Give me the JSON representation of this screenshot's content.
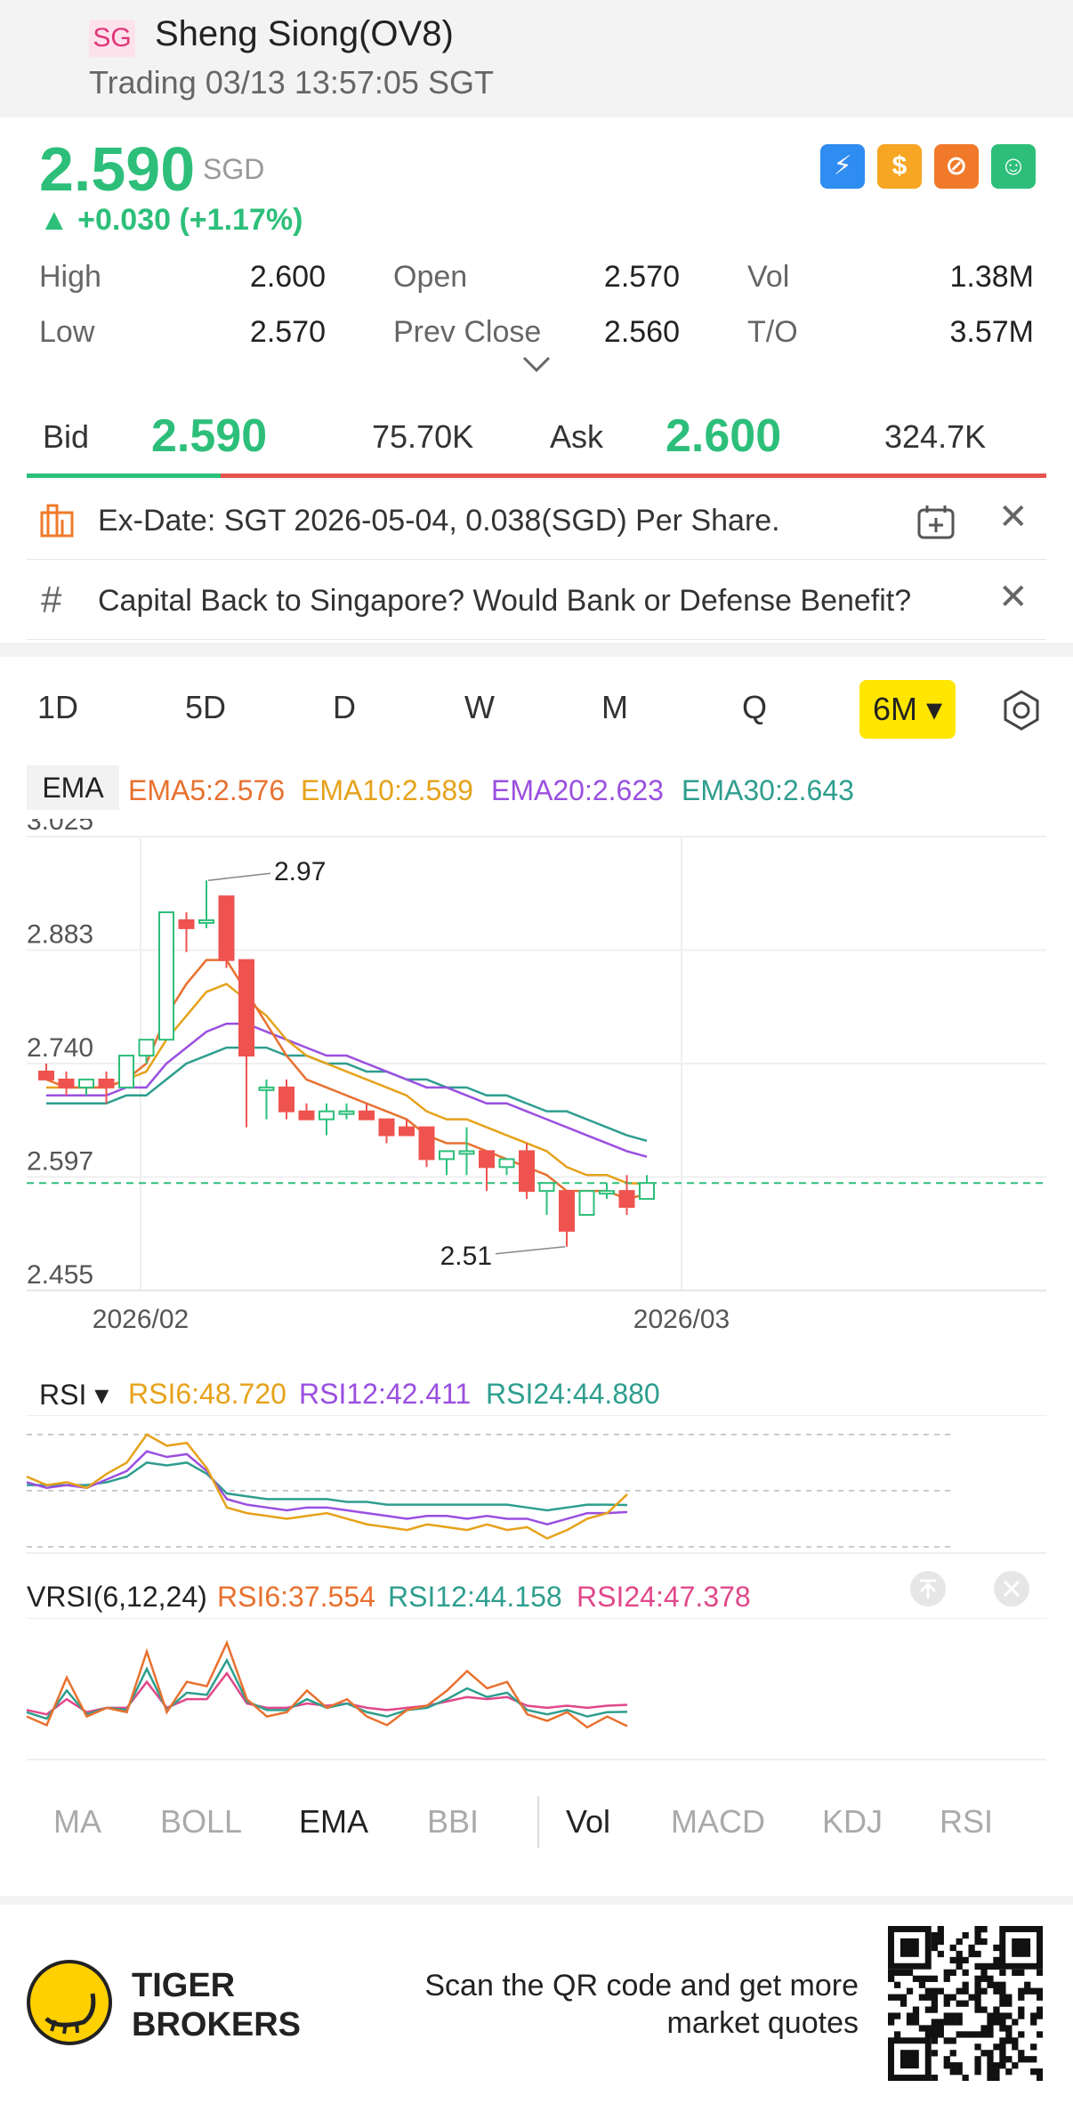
{
  "header": {
    "badge": "SG",
    "title": "Sheng Siong(OV8)",
    "status": "Trading 03/13 13:57:05 SGT"
  },
  "quote": {
    "price": "2.590",
    "currency": "SGD",
    "change": "▲ +0.030 (+1.17%)",
    "feature_icons": [
      "lightning-icon",
      "dollar-icon",
      "no-fee-icon",
      "news-icon"
    ],
    "stats": [
      {
        "label": "High",
        "value": "2.600"
      },
      {
        "label": "Open",
        "value": "2.570"
      },
      {
        "label": "Vol",
        "value": "1.38M"
      },
      {
        "label": "Low",
        "value": "2.570"
      },
      {
        "label": "Prev Close",
        "value": "2.560"
      },
      {
        "label": "T/O",
        "value": "3.57M"
      }
    ]
  },
  "bidask": {
    "bid_label": "Bid",
    "bid_price": "2.590",
    "bid_vol": "75.70K",
    "ask_label": "Ask",
    "ask_price": "2.600",
    "ask_vol": "324.7K",
    "bid_ratio": 0.19
  },
  "notices": [
    {
      "text": "Ex-Date: SGT 2026-05-04, 0.038(SGD) Per Share."
    },
    {
      "text": "Capital Back to Singapore? Would Bank or Defense Benefit?"
    }
  ],
  "periods": [
    "1D",
    "5D",
    "D",
    "W",
    "M",
    "Q"
  ],
  "active_period": "6M ▾",
  "ema_legend": {
    "chip": "EMA",
    "items": [
      {
        "text": "EMA5:2.576",
        "color": "#e8712f"
      },
      {
        "text": "EMA10:2.589",
        "color": "#e6a21a"
      },
      {
        "text": "EMA20:2.623",
        "color": "#9a4fe0"
      },
      {
        "text": "EMA30:2.643",
        "color": "#2e9e8e"
      }
    ]
  },
  "rsi_legend": {
    "label": "RSI ▾",
    "items": [
      {
        "text": "RSI6:48.720",
        "color": "#e6a21a"
      },
      {
        "text": "RSI12:42.411",
        "color": "#9a4fe0"
      },
      {
        "text": "RSI24:44.880",
        "color": "#2e9e8e"
      }
    ]
  },
  "vrsi_legend": {
    "label": "VRSI(6,12,24)",
    "items": [
      {
        "text": "RSI6:37.554",
        "color": "#e8712f"
      },
      {
        "text": "RSI12:44.158",
        "color": "#2e9e8e"
      },
      {
        "text": "RSI24:47.378",
        "color": "#e0488a"
      }
    ]
  },
  "indicator_tabs": [
    "MA",
    "BOLL",
    "EMA",
    "BBI",
    "Vol",
    "MACD",
    "KDJ",
    "RSI"
  ],
  "footer": {
    "brand_line1": "TIGER",
    "brand_line2": "BROKERS",
    "scan_line1": "Scan the QR code and get more",
    "scan_line2": "market quotes"
  },
  "chart_data": {
    "type": "candlestick",
    "y_ticks": [
      "3.025",
      "2.883",
      "2.740",
      "2.597",
      "2.455"
    ],
    "x_ticks": [
      "2026/02",
      "2026/03"
    ],
    "ylim": [
      2.455,
      3.025
    ],
    "ref_line": 2.59,
    "high_label": "2.97",
    "low_label": "2.51",
    "candles": [
      {
        "o": 2.73,
        "h": 2.74,
        "l": 2.72,
        "c": 2.72
      },
      {
        "o": 2.72,
        "h": 2.73,
        "l": 2.7,
        "c": 2.71
      },
      {
        "o": 2.71,
        "h": 2.72,
        "l": 2.7,
        "c": 2.72
      },
      {
        "o": 2.72,
        "h": 2.73,
        "l": 2.69,
        "c": 2.71
      },
      {
        "o": 2.71,
        "h": 2.75,
        "l": 2.71,
        "c": 2.75
      },
      {
        "o": 2.75,
        "h": 2.77,
        "l": 2.74,
        "c": 2.77
      },
      {
        "o": 2.77,
        "h": 2.93,
        "l": 2.77,
        "c": 2.93
      },
      {
        "o": 2.92,
        "h": 2.93,
        "l": 2.88,
        "c": 2.91
      },
      {
        "o": 2.92,
        "h": 2.97,
        "l": 2.91,
        "c": 2.92
      },
      {
        "o": 2.95,
        "h": 2.95,
        "l": 2.86,
        "c": 2.87
      },
      {
        "o": 2.87,
        "h": 2.87,
        "l": 2.66,
        "c": 2.75
      },
      {
        "o": 2.71,
        "h": 2.72,
        "l": 2.67,
        "c": 2.71
      },
      {
        "o": 2.71,
        "h": 2.72,
        "l": 2.67,
        "c": 2.68
      },
      {
        "o": 2.68,
        "h": 2.69,
        "l": 2.67,
        "c": 2.67
      },
      {
        "o": 2.67,
        "h": 2.69,
        "l": 2.65,
        "c": 2.68
      },
      {
        "o": 2.68,
        "h": 2.69,
        "l": 2.67,
        "c": 2.68
      },
      {
        "o": 2.68,
        "h": 2.69,
        "l": 2.67,
        "c": 2.67
      },
      {
        "o": 2.67,
        "h": 2.67,
        "l": 2.64,
        "c": 2.65
      },
      {
        "o": 2.66,
        "h": 2.67,
        "l": 2.65,
        "c": 2.65
      },
      {
        "o": 2.66,
        "h": 2.66,
        "l": 2.61,
        "c": 2.62
      },
      {
        "o": 2.62,
        "h": 2.63,
        "l": 2.6,
        "c": 2.63
      },
      {
        "o": 2.63,
        "h": 2.66,
        "l": 2.6,
        "c": 2.63
      },
      {
        "o": 2.63,
        "h": 2.63,
        "l": 2.58,
        "c": 2.61
      },
      {
        "o": 2.61,
        "h": 2.62,
        "l": 2.6,
        "c": 2.62
      },
      {
        "o": 2.63,
        "h": 2.64,
        "l": 2.57,
        "c": 2.58
      },
      {
        "o": 2.58,
        "h": 2.59,
        "l": 2.55,
        "c": 2.59
      },
      {
        "o": 2.58,
        "h": 2.58,
        "l": 2.51,
        "c": 2.53
      },
      {
        "o": 2.55,
        "h": 2.58,
        "l": 2.55,
        "c": 2.58
      },
      {
        "o": 2.58,
        "h": 2.59,
        "l": 2.57,
        "c": 2.58
      },
      {
        "o": 2.58,
        "h": 2.6,
        "l": 2.55,
        "c": 2.56
      },
      {
        "o": 2.57,
        "h": 2.6,
        "l": 2.57,
        "c": 2.59
      }
    ],
    "ema5": [
      2.72,
      2.71,
      2.71,
      2.71,
      2.72,
      2.74,
      2.8,
      2.84,
      2.87,
      2.87,
      2.83,
      2.79,
      2.75,
      2.72,
      2.71,
      2.7,
      2.69,
      2.68,
      2.67,
      2.65,
      2.64,
      2.64,
      2.63,
      2.62,
      2.61,
      2.6,
      2.58,
      2.58,
      2.58,
      2.57,
      2.576
    ],
    "ema10": [
      2.71,
      2.71,
      2.71,
      2.71,
      2.72,
      2.73,
      2.77,
      2.8,
      2.83,
      2.84,
      2.82,
      2.8,
      2.77,
      2.75,
      2.74,
      2.73,
      2.72,
      2.71,
      2.7,
      2.68,
      2.67,
      2.67,
      2.66,
      2.65,
      2.64,
      2.63,
      2.61,
      2.6,
      2.6,
      2.59,
      2.589
    ],
    "ema20": [
      2.7,
      2.7,
      2.7,
      2.7,
      2.71,
      2.71,
      2.74,
      2.76,
      2.78,
      2.79,
      2.79,
      2.78,
      2.77,
      2.76,
      2.75,
      2.75,
      2.74,
      2.73,
      2.72,
      2.71,
      2.71,
      2.7,
      2.69,
      2.69,
      2.68,
      2.67,
      2.66,
      2.65,
      2.64,
      2.63,
      2.623
    ],
    "ema30": [
      2.69,
      2.69,
      2.69,
      2.69,
      2.7,
      2.7,
      2.72,
      2.74,
      2.75,
      2.76,
      2.76,
      2.76,
      2.75,
      2.75,
      2.74,
      2.74,
      2.73,
      2.73,
      2.72,
      2.72,
      2.71,
      2.71,
      2.7,
      2.7,
      2.69,
      2.68,
      2.68,
      2.67,
      2.66,
      2.65,
      2.643
    ],
    "rsi6": [
      55,
      52,
      53,
      51,
      56,
      60,
      70,
      66,
      67,
      58,
      44,
      42,
      41,
      40,
      41,
      42,
      40,
      38,
      37,
      36,
      38,
      37,
      36,
      38,
      36,
      37,
      33,
      36,
      40,
      42,
      48.72
    ],
    "rsi12": [
      53,
      51,
      52,
      51,
      54,
      57,
      64,
      62,
      63,
      57,
      47,
      45,
      44,
      43,
      44,
      44,
      43,
      42,
      41,
      40,
      41,
      41,
      40,
      41,
      40,
      40,
      38,
      40,
      42,
      42,
      42.411
    ],
    "rsi24": [
      52,
      52,
      52,
      52,
      53,
      55,
      60,
      59,
      60,
      56,
      49,
      48,
      47,
      47,
      47,
      47,
      46,
      46,
      45,
      45,
      45,
      45,
      45,
      45,
      45,
      44,
      43,
      44,
      45,
      45,
      44.88
    ],
    "vrsi6": [
      42,
      38,
      60,
      42,
      46,
      44,
      72,
      44,
      58,
      56,
      76,
      50,
      42,
      44,
      54,
      46,
      50,
      42,
      38,
      45,
      47,
      54,
      63,
      55,
      58,
      43,
      40,
      44,
      37,
      42,
      37.554
    ],
    "vrsi12": [
      44,
      41,
      54,
      43,
      46,
      45,
      64,
      45,
      53,
      52,
      68,
      49,
      45,
      45,
      50,
      46,
      48,
      44,
      42,
      45,
      46,
      50,
      55,
      51,
      53,
      45,
      43,
      45,
      42,
      44,
      44.158
    ],
    "vrsi24": [
      45,
      43,
      50,
      44,
      46,
      46,
      58,
      46,
      50,
      50,
      62,
      48,
      46,
      46,
      48,
      47,
      48,
      46,
      45,
      46,
      47,
      49,
      51,
      50,
      51,
      47,
      46,
      47,
      46,
      47,
      47.378
    ]
  }
}
